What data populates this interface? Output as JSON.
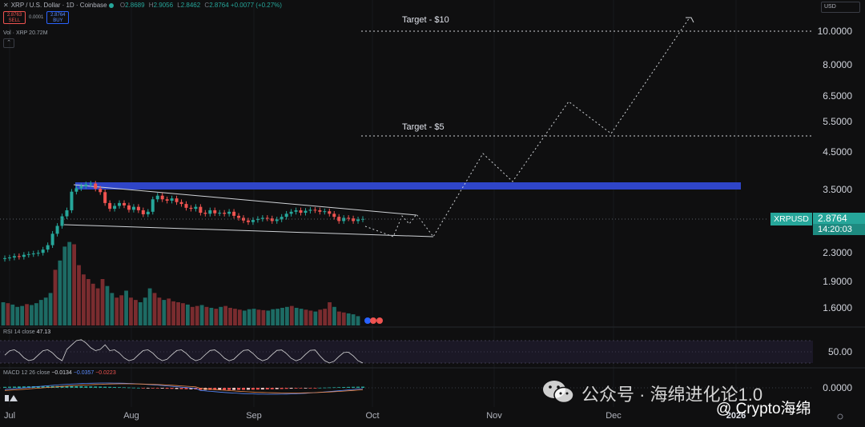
{
  "header": {
    "title": "XRP / U.S. Dollar · 1D · Coinbase",
    "o_label": "O",
    "o": "2.8689",
    "h_label": "H",
    "h": "2.9056",
    "l_label": "L",
    "l": "2.8462",
    "c_label": "C",
    "c": "2.8764",
    "change": "+0.0077 (+0.27%)",
    "sell_price": "2.8763",
    "sell_label": "SELL",
    "spread": "0.0001",
    "buy_price": "2.8764",
    "buy_label": "BUY",
    "volume_label": "Vol · XRP",
    "volume_value": "20.72M",
    "currency": "USD",
    "collapse_icon": "chevron-up-icon"
  },
  "price_tag": {
    "symbol": "XRPUSD",
    "price": "2.8764",
    "countdown": "14:20:03"
  },
  "indicators": {
    "rsi_label": "RSI 14 close",
    "rsi_value": "47.13",
    "rsi_axis": "50.00",
    "macd_label": "MACD 12 26 close",
    "macd_1": "−0.0134",
    "macd_2": "−0.0357",
    "macd_3": "−0.0223",
    "macd_axis": "0.0000"
  },
  "annotations": {
    "target_10": "Target - $10",
    "target_5": "Target - $5"
  },
  "watermark": {
    "line1": "公众号 · 海绵进化论1.0",
    "line2": "@ Crypto海绵"
  },
  "colors": {
    "up": "#26a69a",
    "down": "#ef5350",
    "resistance": "#2f45c8",
    "background": "#0f0f10"
  },
  "chart_data": {
    "type": "candlestick",
    "symbol": "XRPUSD",
    "timeframe": "1D",
    "y_scale": "log",
    "y_ticks": [
      "10.0000",
      "8.0000",
      "6.5000",
      "5.5000",
      "4.5000",
      "3.5000",
      "2.3000",
      "1.9000",
      "1.6000"
    ],
    "x_ticks": [
      "Jul",
      "Aug",
      "Sep",
      "Oct",
      "Nov",
      "Dec",
      "2026"
    ],
    "last_price": 2.8764,
    "resistance_zone": [
      3.52,
      3.66
    ],
    "targets": [
      10,
      5
    ],
    "closes": [
      2.22,
      2.23,
      2.25,
      2.24,
      2.27,
      2.28,
      2.29,
      2.3,
      2.35,
      2.42,
      2.61,
      2.75,
      2.93,
      3.05,
      3.45,
      3.53,
      3.58,
      3.62,
      3.64,
      3.52,
      3.44,
      3.2,
      3.08,
      3.14,
      3.2,
      3.15,
      3.06,
      3.12,
      3.05,
      2.97,
      3.02,
      3.28,
      3.36,
      3.28,
      3.25,
      3.3,
      3.22,
      3.18,
      3.1,
      3.08,
      3.12,
      3.0,
      2.98,
      3.05,
      2.99,
      3.0,
      2.98,
      3.02,
      2.94,
      2.9,
      2.85,
      2.82,
      2.86,
      2.88,
      2.9,
      2.89,
      2.84,
      2.87,
      2.92,
      2.98,
      3.02,
      3.05,
      3.0,
      3.04,
      3.06,
      3.05,
      3.02,
      3.03,
      2.98,
      2.92,
      2.84,
      2.9,
      2.89,
      2.84,
      2.87,
      2.88
    ],
    "volumes_m": [
      50,
      48,
      45,
      40,
      42,
      46,
      44,
      48,
      55,
      60,
      70,
      120,
      140,
      170,
      180,
      175,
      130,
      110,
      100,
      90,
      80,
      100,
      85,
      70,
      60,
      65,
      75,
      60,
      55,
      50,
      60,
      80,
      70,
      60,
      55,
      58,
      52,
      50,
      48,
      45,
      40,
      42,
      44,
      40,
      38,
      36,
      40,
      42,
      38,
      36,
      34,
      32,
      35,
      36,
      34,
      33,
      32,
      35,
      36,
      38,
      40,
      42,
      38,
      36,
      34,
      32,
      30,
      34,
      36,
      50,
      40,
      30,
      28,
      26,
      24,
      20
    ],
    "volume_down": [
      false,
      true,
      false,
      false,
      false,
      true,
      false,
      false,
      false,
      false,
      false,
      true,
      false,
      false,
      false,
      true,
      true,
      true,
      true,
      true,
      true,
      true,
      false,
      false,
      true,
      true,
      false,
      true,
      true,
      false,
      false,
      false,
      true,
      true,
      false,
      true,
      true,
      true,
      true,
      false,
      true,
      true,
      false,
      true,
      false,
      true,
      false,
      true,
      true,
      true,
      true,
      false,
      false,
      false,
      true,
      true,
      false,
      false,
      false,
      false,
      false,
      true,
      false,
      false,
      true,
      true,
      false,
      true,
      true,
      true,
      false,
      true,
      true,
      false,
      false,
      false
    ],
    "projection_path": [
      [
        2.78,
        "2025-10-02"
      ],
      [
        2.98,
        "2025-10-07"
      ],
      [
        2.66,
        "2025-10-12"
      ],
      [
        4.45,
        "2025-10-23"
      ],
      [
        3.68,
        "2025-11-01"
      ],
      [
        6.3,
        "2025-11-16"
      ],
      [
        5.0,
        "2025-11-28"
      ],
      [
        10.9,
        "2025-12-16"
      ]
    ]
  }
}
